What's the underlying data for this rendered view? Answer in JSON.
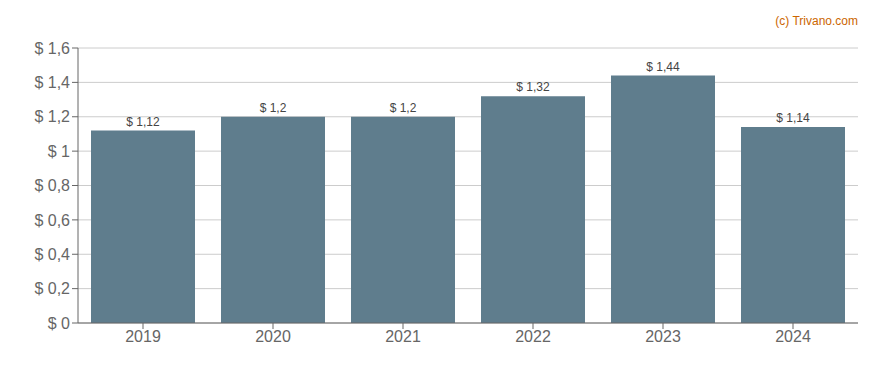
{
  "chart_data": {
    "type": "bar",
    "categories": [
      "2019",
      "2020",
      "2021",
      "2022",
      "2023",
      "2024"
    ],
    "values": [
      1.12,
      1.2,
      1.2,
      1.32,
      1.44,
      1.14
    ],
    "value_labels": [
      "$ 1,12",
      "$ 1,2",
      "$ 1,2",
      "$ 1,32",
      "$ 1,44",
      "$ 1,14"
    ],
    "color": "#5f7d8d",
    "ylim": [
      0,
      1.6
    ],
    "yticks": [
      {
        "value": 0,
        "label": "$ 0"
      },
      {
        "value": 0.2,
        "label": "$ 0,2"
      },
      {
        "value": 0.4,
        "label": "$ 0,4"
      },
      {
        "value": 0.6,
        "label": "$ 0,6"
      },
      {
        "value": 0.8,
        "label": "$ 0,8"
      },
      {
        "value": 1.0,
        "label": "$ 1"
      },
      {
        "value": 1.2,
        "label": "$ 1,2"
      },
      {
        "value": 1.4,
        "label": "$ 1,4"
      },
      {
        "value": 1.6,
        "label": "$ 1,6"
      }
    ],
    "grid": true,
    "data_labels": true,
    "annotations": [
      {
        "text": "(c) Trivano.com",
        "color": "#cc6600"
      }
    ]
  }
}
